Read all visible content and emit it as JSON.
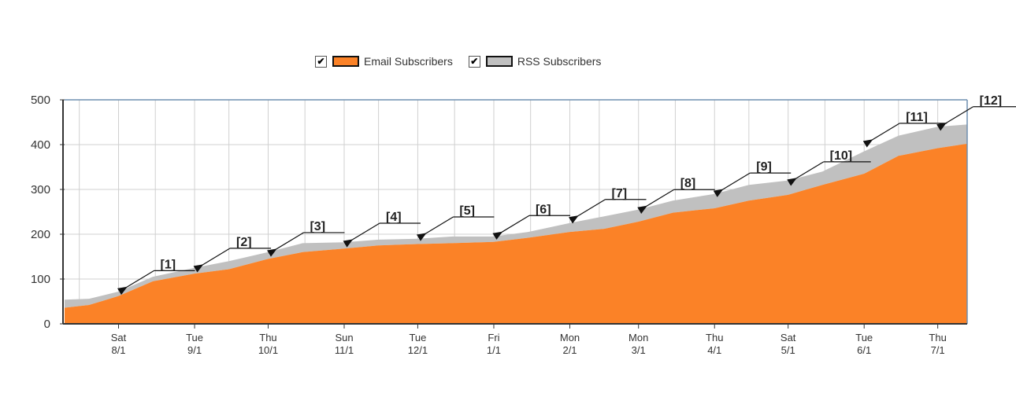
{
  "chart_data": {
    "type": "area",
    "stacked": true,
    "title": "",
    "xlabel": "",
    "ylabel": "",
    "ylim": [
      0,
      500
    ],
    "yticks": [
      0,
      100,
      200,
      300,
      400,
      500
    ],
    "xlim": [
      "2009-07-10",
      "2010-07-13"
    ],
    "grid": true,
    "legend_placement": "top",
    "xticks": [
      {
        "date": "2009-08-01",
        "day": "Sat",
        "label": "8/1"
      },
      {
        "date": "2009-09-01",
        "day": "Tue",
        "label": "9/1"
      },
      {
        "date": "2009-10-01",
        "day": "Thu",
        "label": "10/1"
      },
      {
        "date": "2009-11-01",
        "day": "Sun",
        "label": "11/1"
      },
      {
        "date": "2009-12-01",
        "day": "Tue",
        "label": "12/1"
      },
      {
        "date": "2010-01-01",
        "day": "Fri",
        "label": "1/1"
      },
      {
        "date": "2010-02-01",
        "day": "Mon",
        "label": "2/1"
      },
      {
        "date": "2010-03-01",
        "day": "Mon",
        "label": "3/1"
      },
      {
        "date": "2010-04-01",
        "day": "Thu",
        "label": "4/1"
      },
      {
        "date": "2010-05-01",
        "day": "Sat",
        "label": "5/1"
      },
      {
        "date": "2010-06-01",
        "day": "Tue",
        "label": "6/1"
      },
      {
        "date": "2010-07-01",
        "day": "Thu",
        "label": "7/1"
      }
    ],
    "x": [
      "2009-07-10",
      "2009-07-20",
      "2009-08-01",
      "2009-08-15",
      "2009-09-01",
      "2009-09-15",
      "2009-10-01",
      "2009-10-15",
      "2009-11-01",
      "2009-11-15",
      "2009-12-01",
      "2009-12-15",
      "2010-01-01",
      "2010-01-15",
      "2010-02-01",
      "2010-02-15",
      "2010-03-01",
      "2010-03-15",
      "2010-04-01",
      "2010-04-15",
      "2010-05-01",
      "2010-05-15",
      "2010-06-01",
      "2010-06-15",
      "2010-07-01",
      "2010-07-13"
    ],
    "series": [
      {
        "name": "Email Subscribers",
        "color": "#fb8227",
        "values": [
          36,
          42,
          62,
          95,
          112,
          122,
          145,
          160,
          168,
          175,
          178,
          180,
          183,
          192,
          205,
          212,
          228,
          248,
          258,
          275,
          288,
          310,
          335,
          375,
          392,
          402
        ]
      },
      {
        "name": "RSS Subscribers",
        "color": "#c0c0c0",
        "values": [
          18,
          14,
          10,
          10,
          13,
          18,
          15,
          20,
          14,
          13,
          12,
          15,
          12,
          13,
          20,
          28,
          27,
          27,
          32,
          35,
          32,
          30,
          50,
          45,
          48,
          43
        ]
      }
    ],
    "annotations": [
      {
        "label": "[1]",
        "date": "2009-08-01",
        "value": 73
      },
      {
        "label": "[2]",
        "date": "2009-09-01",
        "value": 123
      },
      {
        "label": "[3]",
        "date": "2009-10-01",
        "value": 158
      },
      {
        "label": "[4]",
        "date": "2009-11-01",
        "value": 179
      },
      {
        "label": "[5]",
        "date": "2009-12-01",
        "value": 193
      },
      {
        "label": "[6]",
        "date": "2010-01-01",
        "value": 196
      },
      {
        "label": "[7]",
        "date": "2010-02-01",
        "value": 232
      },
      {
        "label": "[8]",
        "date": "2010-03-01",
        "value": 254
      },
      {
        "label": "[9]",
        "date": "2010-04-01",
        "value": 291
      },
      {
        "label": "[10]",
        "date": "2010-05-01",
        "value": 316
      },
      {
        "label": "[11]",
        "date": "2010-06-01",
        "value": 402
      },
      {
        "label": "[12]",
        "date": "2010-07-01",
        "value": 439
      }
    ]
  },
  "legend": {
    "items": [
      {
        "label": "Email Subscribers",
        "checked": true,
        "color": "#fb8227"
      },
      {
        "label": "RSS Subscribers",
        "checked": true,
        "color": "#c0c0c0"
      }
    ],
    "check_glyph": "✔"
  }
}
